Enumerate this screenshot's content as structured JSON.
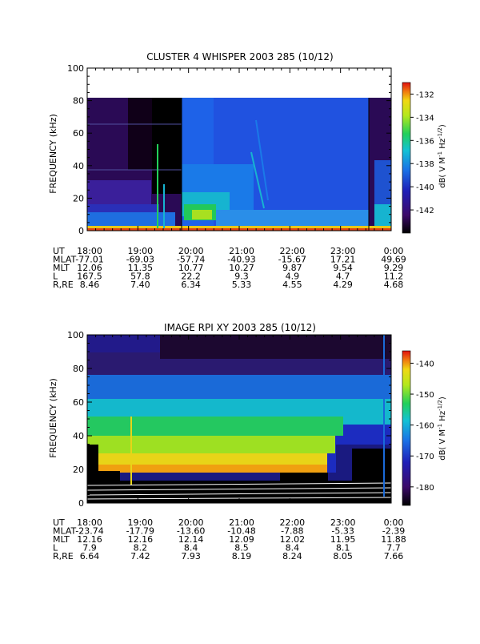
{
  "chart_data": [
    {
      "type": "heatmap",
      "title": "CLUSTER 4 WHISPER 2003 285 (10/12)",
      "ylabel": "FREQUENCY (kHz)",
      "ylim": [
        0,
        100
      ],
      "y_ticks": [
        "0",
        "20",
        "40",
        "60",
        "80",
        "100"
      ],
      "x_ticks": [
        "18:00",
        "19:00",
        "20:00",
        "21:00",
        "22:00",
        "23:00",
        "0:00"
      ],
      "colorbar": {
        "label": "dB( V M⁻¹ Hz⁻¹ᐟ²)",
        "label_text": "dB( V M",
        "ticks": [
          "-132",
          "-134",
          "-136",
          "-138",
          "-140",
          "-142"
        ],
        "range": [
          -144,
          -131
        ]
      },
      "ephemeris": [
        {
          "label": "UT",
          "values": [
            "18:00",
            "19:00",
            "20:00",
            "21:00",
            "22:00",
            "23:00",
            "0:00"
          ]
        },
        {
          "label": "MLAT",
          "values": [
            "-77.01",
            "-69.03",
            "-57.74",
            "-40.93",
            "-15.67",
            "17.21",
            "49.69"
          ]
        },
        {
          "label": "MLT",
          "values": [
            "12.06",
            "11.35",
            "10.77",
            "10.27",
            "9.87",
            "9.54",
            "9.29"
          ]
        },
        {
          "label": "L",
          "values": [
            "167.5",
            "57.8",
            "22.2",
            "9.3",
            "4.9",
            "4.7",
            "11.2"
          ]
        },
        {
          "label": "R,RE",
          "values": [
            "8.46",
            "7.40",
            "6.34",
            "5.33",
            "4.55",
            "4.29",
            "4.68"
          ]
        }
      ]
    },
    {
      "type": "heatmap",
      "title": "IMAGE RPI XY 2003 285 (10/12)",
      "ylabel": "FREQUENCY (kHz)",
      "ylim": [
        0,
        100
      ],
      "y_ticks": [
        "0",
        "20",
        "40",
        "60",
        "80",
        "100"
      ],
      "x_ticks": [
        "18:00",
        "19:00",
        "20:00",
        "21:00",
        "22:00",
        "23:00",
        "0:00"
      ],
      "colorbar": {
        "label_text": "dB( V M",
        "ticks": [
          "-140",
          "-150",
          "-160",
          "-170",
          "-180"
        ],
        "range": [
          -186,
          -136
        ]
      },
      "ephemeris": [
        {
          "label": "UT",
          "values": [
            "18:00",
            "19:00",
            "20:00",
            "21:00",
            "22:00",
            "23:00",
            "0:00"
          ]
        },
        {
          "label": "MLAT",
          "values": [
            "-23.74",
            "-17.79",
            "-13.60",
            "-10.48",
            "-7.88",
            "-5.33",
            "-2.39"
          ]
        },
        {
          "label": "MLT",
          "values": [
            "12.16",
            "12.16",
            "12.14",
            "12.09",
            "12.02",
            "11.95",
            "11.88"
          ]
        },
        {
          "label": "L",
          "values": [
            "7.9",
            "8.2",
            "8.4",
            "8.5",
            "8.4",
            "8.1",
            "7.7"
          ]
        },
        {
          "label": "R,RE",
          "values": [
            "6.64",
            "7.42",
            "7.93",
            "8.19",
            "8.24",
            "8.05",
            "7.66"
          ]
        }
      ]
    }
  ]
}
